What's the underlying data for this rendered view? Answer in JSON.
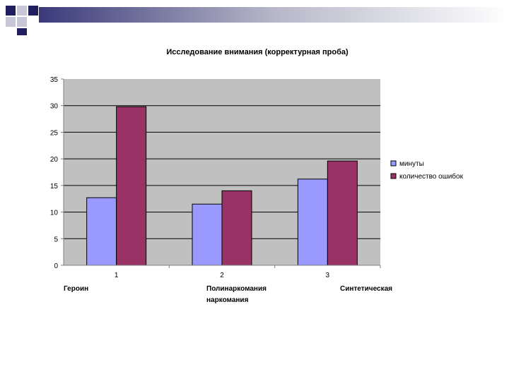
{
  "theme": {
    "deco_dark": "#1f1f5f",
    "deco_light": "#c7c7d8",
    "plot_bg": "#c0c0c0",
    "gridline": "#000000"
  },
  "chart_data": {
    "type": "bar",
    "title": "Исследование внимания (корректурная проба)",
    "categories": [
      "1",
      "2",
      "3"
    ],
    "series": [
      {
        "name": "минуты",
        "color": "#9999ff",
        "values": [
          12.7,
          11.5,
          16.2
        ]
      },
      {
        "name": "количество ошибок",
        "color": "#993366",
        "values": [
          29.8,
          14.0,
          19.6
        ]
      }
    ],
    "ylim": [
      0,
      35
    ],
    "yticks": [
      0,
      5,
      10,
      15,
      20,
      25,
      30,
      35
    ],
    "grid": true,
    "legend_position": "right",
    "xlabel": "",
    "ylabel": ""
  },
  "category_notes": [
    "Героин",
    "Полинаркомания\nнаркомания",
    "Синтетическая"
  ]
}
